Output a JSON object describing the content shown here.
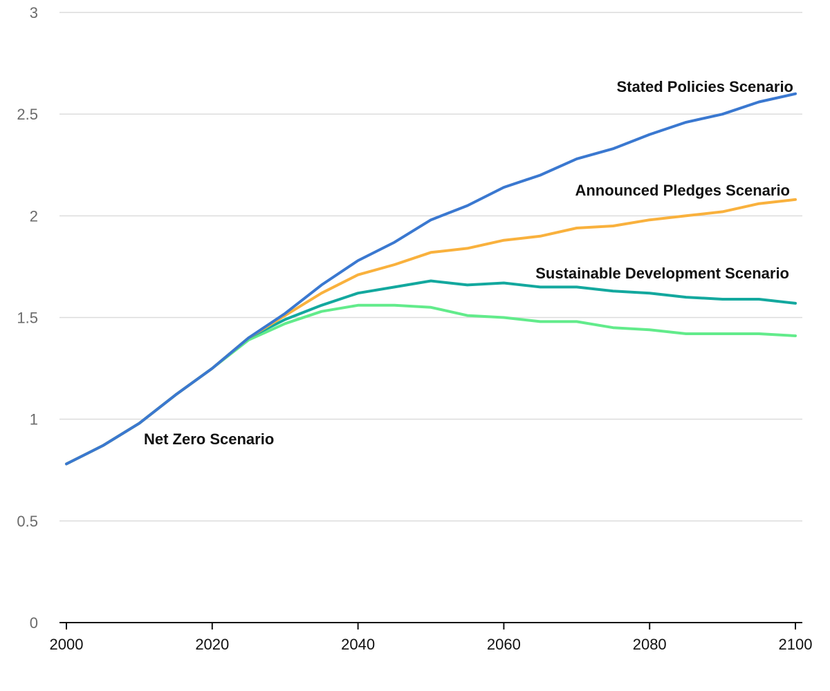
{
  "chart_data": {
    "type": "line",
    "title": "",
    "xlabel": "",
    "ylabel": "",
    "xlim": [
      2000,
      2100
    ],
    "ylim": [
      0,
      3
    ],
    "x_ticks": [
      2000,
      2020,
      2040,
      2060,
      2080,
      2100
    ],
    "y_ticks": [
      0,
      0.5,
      1,
      1.5,
      2,
      2.5,
      3
    ],
    "y_tick_labels": [
      "0",
      "0.5",
      "1",
      "1.5",
      "2",
      "2.5",
      "3"
    ],
    "grid": true,
    "legend": "inline labels",
    "x": [
      2000,
      2005,
      2010,
      2015,
      2020,
      2025,
      2030,
      2035,
      2040,
      2045,
      2050,
      2055,
      2060,
      2065,
      2070,
      2075,
      2080,
      2085,
      2090,
      2095,
      2100
    ],
    "series": [
      {
        "name": "Net Zero Scenario",
        "color": "#62eb8b",
        "values": [
          0.78,
          0.87,
          0.98,
          1.12,
          1.25,
          1.39,
          1.47,
          1.53,
          1.56,
          1.56,
          1.55,
          1.51,
          1.5,
          1.48,
          1.48,
          1.45,
          1.44,
          1.42,
          1.42,
          1.42,
          1.41
        ]
      },
      {
        "name": "Sustainable Development Scenario",
        "color": "#13a89e",
        "values": [
          0.78,
          0.87,
          0.98,
          1.12,
          1.25,
          1.4,
          1.49,
          1.56,
          1.62,
          1.65,
          1.68,
          1.66,
          1.67,
          1.65,
          1.65,
          1.63,
          1.62,
          1.6,
          1.59,
          1.59,
          1.57
        ]
      },
      {
        "name": "Announced Pledges Scenario",
        "color": "#f9b13d",
        "values": [
          0.78,
          0.87,
          0.98,
          1.12,
          1.25,
          1.4,
          1.51,
          1.62,
          1.71,
          1.76,
          1.82,
          1.84,
          1.88,
          1.9,
          1.94,
          1.95,
          1.98,
          2.0,
          2.02,
          2.06,
          2.08
        ]
      },
      {
        "name": "Stated Policies Scenario",
        "color": "#3a78d0",
        "values": [
          0.78,
          0.87,
          0.98,
          1.12,
          1.25,
          1.4,
          1.52,
          1.66,
          1.78,
          1.87,
          1.98,
          2.05,
          2.14,
          2.2,
          2.28,
          2.33,
          2.4,
          2.46,
          2.5,
          2.56,
          2.6
        ]
      }
    ],
    "annotations": [
      {
        "text": "Stated Policies Scenario",
        "series": "Stated Policies Scenario"
      },
      {
        "text": "Announced Pledges Scenario",
        "series": "Announced Pledges Scenario"
      },
      {
        "text": "Sustainable Development Scenario",
        "series": "Sustainable Development Scenario"
      },
      {
        "text": "Net Zero Scenario",
        "series": "Net Zero Scenario"
      }
    ]
  }
}
